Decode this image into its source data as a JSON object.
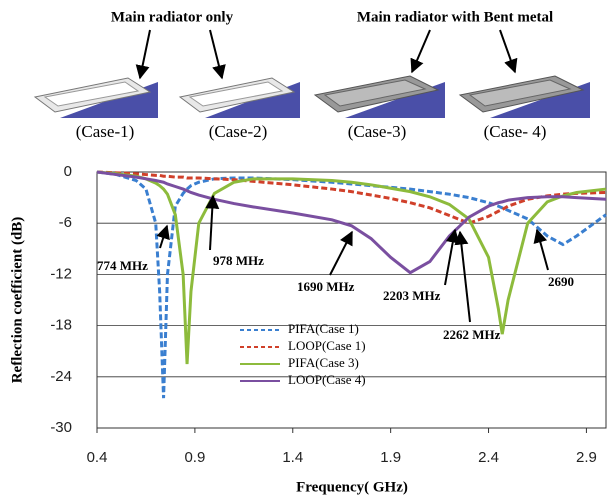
{
  "header": {
    "labels": [
      "Main radiator only",
      "Main radiator with Bent metal"
    ],
    "cases": [
      "(Case-1)",
      "(Case-2)",
      "(Case-3)",
      "(Case- 4)"
    ]
  },
  "chart_data": {
    "type": "line",
    "xlabel": "Frequency( GHz)",
    "ylabel": "Reflection coefficient (dB)",
    "xlim": [
      0.4,
      3.0
    ],
    "xticks": [
      0.4,
      0.9,
      1.4,
      1.9,
      2.4,
      2.9
    ],
    "ylim": [
      -30,
      0
    ],
    "yticks": [
      0,
      -6,
      -12,
      -18,
      -24,
      -30
    ],
    "grid": true,
    "legend": "center",
    "x": [
      0.4,
      0.5,
      0.6,
      0.65,
      0.7,
      0.72,
      0.74,
      0.76,
      0.8,
      0.84,
      0.86,
      0.88,
      0.92,
      1.0,
      1.1,
      1.2,
      1.4,
      1.6,
      1.7,
      1.8,
      1.9,
      2.0,
      2.1,
      2.2,
      2.3,
      2.4,
      2.45,
      2.47,
      2.5,
      2.6,
      2.7,
      2.78,
      2.85,
      3.0
    ],
    "series": [
      {
        "name": "PIFA(Case 1)",
        "color": "#3a7fd0",
        "style": "dashed",
        "values": [
          0,
          -0.3,
          -1,
          -2,
          -6,
          -14,
          -26.5,
          -12,
          -4,
          -2.5,
          -2,
          -1.6,
          -1.2,
          -0.8,
          -0.7,
          -0.7,
          -0.9,
          -1.2,
          -1.4,
          -1.6,
          -1.8,
          -2,
          -2.3,
          -2.6,
          -3,
          -3.6,
          -4,
          -4.2,
          -4.5,
          -5.5,
          -7.5,
          -8.5,
          -7.5,
          -5
        ]
      },
      {
        "name": "LOOP(Case 1)",
        "color": "#d0402a",
        "style": "dashed",
        "values": [
          0,
          -0.1,
          -0.2,
          -0.3,
          -0.4,
          -0.4,
          -0.5,
          -0.5,
          -0.6,
          -0.6,
          -0.7,
          -0.7,
          -0.7,
          -0.8,
          -0.9,
          -1.1,
          -1.5,
          -2,
          -2.3,
          -2.7,
          -3.1,
          -3.6,
          -4.2,
          -5.1,
          -6,
          -5.2,
          -4.6,
          -4.4,
          -4,
          -3.2,
          -2.8,
          -2.6,
          -2.5,
          -2.4
        ]
      },
      {
        "name": "PIFA(Case 3)",
        "color": "#8dbb3c",
        "style": "solid",
        "values": [
          0,
          -0.2,
          -0.5,
          -0.8,
          -1.3,
          -1.6,
          -2,
          -2.6,
          -5,
          -12,
          -22.5,
          -14,
          -6,
          -2.5,
          -1.2,
          -0.8,
          -0.8,
          -1,
          -1.2,
          -1.5,
          -1.9,
          -2.3,
          -2.9,
          -3.8,
          -5.5,
          -10,
          -16,
          -19,
          -15,
          -6,
          -3.5,
          -2.8,
          -2.4,
          -2
        ]
      },
      {
        "name": "LOOP(Case 4)",
        "color": "#7a4fa0",
        "style": "solid",
        "values": [
          0,
          -0.3,
          -0.6,
          -0.8,
          -1,
          -1.1,
          -1.2,
          -1.4,
          -1.7,
          -2,
          -2.2,
          -2.4,
          -2.7,
          -3.2,
          -3.7,
          -4.1,
          -4.8,
          -5.6,
          -6.3,
          -7.8,
          -10,
          -11.8,
          -10.5,
          -7.5,
          -5.3,
          -4,
          -3.6,
          -3.5,
          -3.3,
          -3,
          -2.9,
          -2.9,
          -3,
          -3.2
        ]
      }
    ],
    "annotations": [
      "774 MHz",
      "978 MHz",
      "1690 MHz",
      "2203 MHz",
      "2262 MHz",
      "2690"
    ]
  }
}
